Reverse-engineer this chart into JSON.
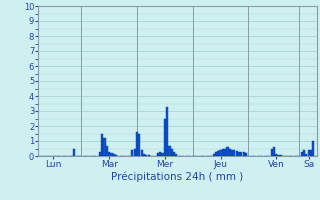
{
  "title": "",
  "xlabel": "Précipitations 24h ( mm )",
  "ylabel": "",
  "ylim": [
    0,
    10
  ],
  "yticks": [
    0,
    1,
    2,
    3,
    4,
    5,
    6,
    7,
    8,
    9,
    10
  ],
  "background_color": "#cff0f0",
  "bar_color": "#1155cc",
  "bar_edge_color": "#0033aa",
  "day_labels": [
    "Lun",
    "Mar",
    "Mer",
    "Jeu",
    "Ven",
    "Sa"
  ],
  "day_tick_positions": [
    6,
    30,
    54,
    78,
    102,
    116
  ],
  "vline_positions": [
    18,
    42,
    66,
    90,
    112
  ],
  "n_bars": 120,
  "values": [
    0.0,
    0.0,
    0.0,
    0.0,
    0.0,
    0.0,
    0.0,
    0.0,
    0.0,
    0.0,
    0.0,
    0.0,
    0.0,
    0.0,
    0.0,
    0.5,
    0.0,
    0.0,
    0.0,
    0.0,
    0.0,
    0.0,
    0.0,
    0.0,
    0.0,
    0.0,
    0.3,
    1.5,
    1.2,
    0.7,
    0.3,
    0.2,
    0.15,
    0.1,
    0.0,
    0.0,
    0.0,
    0.0,
    0.0,
    0.0,
    0.4,
    0.5,
    1.6,
    1.5,
    0.4,
    0.15,
    0.1,
    0.05,
    0.0,
    0.0,
    0.0,
    0.2,
    0.3,
    0.2,
    2.5,
    3.3,
    0.7,
    0.5,
    0.3,
    0.15,
    0.0,
    0.0,
    0.0,
    0.0,
    0.0,
    0.0,
    0.0,
    0.0,
    0.0,
    0.0,
    0.0,
    0.0,
    0.0,
    0.0,
    0.0,
    0.15,
    0.3,
    0.35,
    0.4,
    0.5,
    0.45,
    0.6,
    0.5,
    0.4,
    0.4,
    0.35,
    0.3,
    0.3,
    0.25,
    0.2,
    0.0,
    0.0,
    0.0,
    0.0,
    0.0,
    0.0,
    0.0,
    0.0,
    0.0,
    0.0,
    0.5,
    0.6,
    0.15,
    0.1,
    0.05,
    0.0,
    0.0,
    0.0,
    0.0,
    0.0,
    0.0,
    0.0,
    0.0,
    0.3,
    0.4,
    0.15,
    0.4,
    0.4,
    1.0,
    0.0
  ],
  "grid_color": "#aad4d4",
  "vline_color": "#8899aa",
  "tick_color": "#2244aa",
  "xlabel_color": "#2244aa",
  "xlabel_fontsize": 7.5,
  "ytick_fontsize": 6,
  "xtick_fontsize": 6.5
}
